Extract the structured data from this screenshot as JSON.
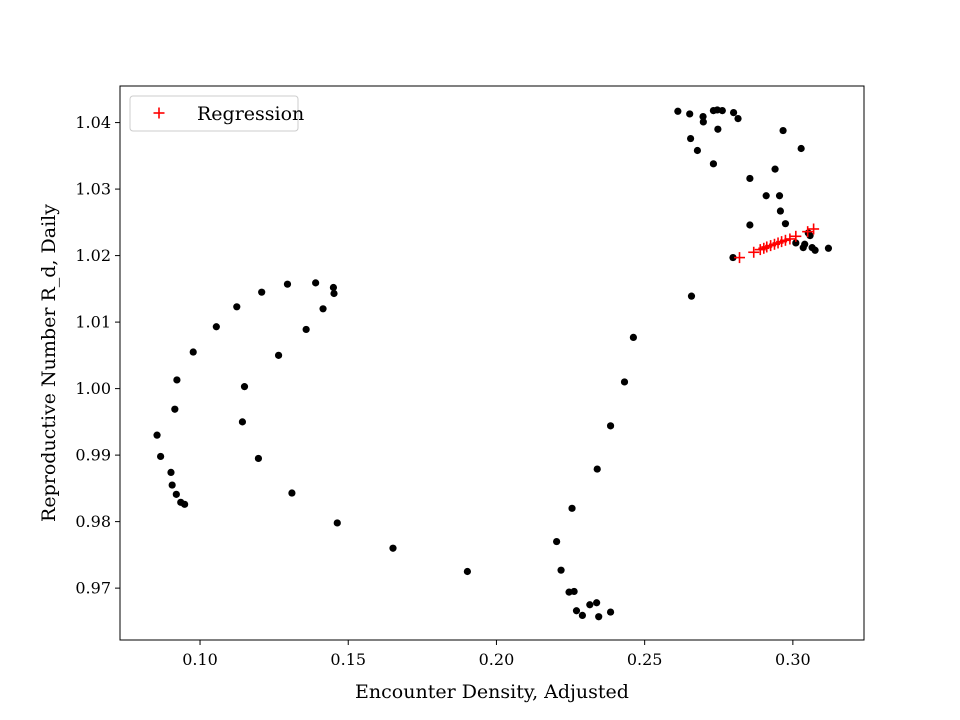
{
  "chart_data": {
    "type": "scatter",
    "xlabel": "Encounter Density, Adjusted",
    "ylabel": "Reproductive Number R_d, Daily",
    "xlim": [
      0.073,
      0.324
    ],
    "ylim": [
      0.9622,
      1.0455
    ],
    "xticks": [
      0.1,
      0.15,
      0.2,
      0.25,
      0.3
    ],
    "xtick_labels": [
      "0.10",
      "0.15",
      "0.20",
      "0.25",
      "0.30"
    ],
    "yticks": [
      0.97,
      0.98,
      0.99,
      1.0,
      1.01,
      1.02,
      1.03,
      1.04
    ],
    "ytick_labels": [
      "0.97",
      "0.98",
      "0.99",
      "1.00",
      "1.01",
      "1.02",
      "1.03",
      "1.04"
    ],
    "grid": false,
    "legend_position": "top-left",
    "series": [
      {
        "name": "",
        "marker": "dot",
        "color": "#000000",
        "points": [
          [
            0.0948,
            0.9826
          ],
          [
            0.0935,
            0.9829
          ],
          [
            0.092,
            0.9841
          ],
          [
            0.0906,
            0.9855
          ],
          [
            0.0902,
            0.9874
          ],
          [
            0.0867,
            0.9898
          ],
          [
            0.0855,
            0.993
          ],
          [
            0.0915,
            0.9969
          ],
          [
            0.0922,
            1.0013
          ],
          [
            0.0977,
            1.0055
          ],
          [
            0.1055,
            1.0093
          ],
          [
            0.1124,
            1.0123
          ],
          [
            0.1208,
            1.0145
          ],
          [
            0.1295,
            1.0157
          ],
          [
            0.139,
            1.0159
          ],
          [
            0.145,
            1.0152
          ],
          [
            0.1452,
            1.0143
          ],
          [
            0.1415,
            1.012
          ],
          [
            0.1358,
            1.0089
          ],
          [
            0.1265,
            1.005
          ],
          [
            0.115,
            1.0003
          ],
          [
            0.1143,
            0.995
          ],
          [
            0.1197,
            0.9895
          ],
          [
            0.131,
            0.9843
          ],
          [
            0.1463,
            0.9798
          ],
          [
            0.1651,
            0.976
          ],
          [
            0.1902,
            0.9725
          ],
          [
            0.2203,
            0.977
          ],
          [
            0.2218,
            0.9727
          ],
          [
            0.2245,
            0.9694
          ],
          [
            0.2262,
            0.9695
          ],
          [
            0.227,
            0.9666
          ],
          [
            0.229,
            0.9659
          ],
          [
            0.2315,
            0.9675
          ],
          [
            0.2338,
            0.9678
          ],
          [
            0.2345,
            0.9657
          ],
          [
            0.2385,
            0.9664
          ],
          [
            0.2255,
            0.982
          ],
          [
            0.234,
            0.9879
          ],
          [
            0.2385,
            0.9944
          ],
          [
            0.2432,
            1.001
          ],
          [
            0.2462,
            1.0077
          ],
          [
            0.2658,
            1.0139
          ],
          [
            0.2798,
            1.0197
          ],
          [
            0.2855,
            1.0246
          ],
          [
            0.2855,
            1.0316
          ],
          [
            0.291,
            1.029
          ],
          [
            0.2955,
            1.029
          ],
          [
            0.2958,
            1.0267
          ],
          [
            0.2975,
            1.0248
          ],
          [
            0.294,
            1.033
          ],
          [
            0.2967,
            1.0388
          ],
          [
            0.3028,
            1.0361
          ],
          [
            0.2612,
            1.0417
          ],
          [
            0.2652,
            1.0413
          ],
          [
            0.2697,
            1.0409
          ],
          [
            0.2698,
            1.0401
          ],
          [
            0.2732,
            1.0418
          ],
          [
            0.2745,
            1.0419
          ],
          [
            0.2762,
            1.0418
          ],
          [
            0.28,
            1.0415
          ],
          [
            0.2815,
            1.0406
          ],
          [
            0.2747,
            1.039
          ],
          [
            0.2655,
            1.0376
          ],
          [
            0.2678,
            1.0358
          ],
          [
            0.2732,
            1.0338
          ],
          [
            0.301,
            1.0219
          ],
          [
            0.3035,
            1.0212
          ],
          [
            0.304,
            1.0217
          ],
          [
            0.3052,
            1.0234
          ],
          [
            0.3058,
            1.023
          ],
          [
            0.3065,
            1.0212
          ],
          [
            0.3075,
            1.0208
          ],
          [
            0.312,
            1.0211
          ]
        ]
      },
      {
        "name": "Regression",
        "marker": "plus",
        "color": "#ff0000",
        "points": [
          [
            0.282,
            1.0197
          ],
          [
            0.2868,
            1.0205
          ],
          [
            0.289,
            1.0209
          ],
          [
            0.2902,
            1.0211
          ],
          [
            0.2912,
            1.0213
          ],
          [
            0.2925,
            1.0215
          ],
          [
            0.2938,
            1.0217
          ],
          [
            0.295,
            1.0219
          ],
          [
            0.2962,
            1.0221
          ],
          [
            0.2975,
            1.0223
          ],
          [
            0.299,
            1.0225
          ],
          [
            0.301,
            1.0229
          ],
          [
            0.305,
            1.0236
          ],
          [
            0.307,
            1.024
          ]
        ]
      }
    ]
  }
}
